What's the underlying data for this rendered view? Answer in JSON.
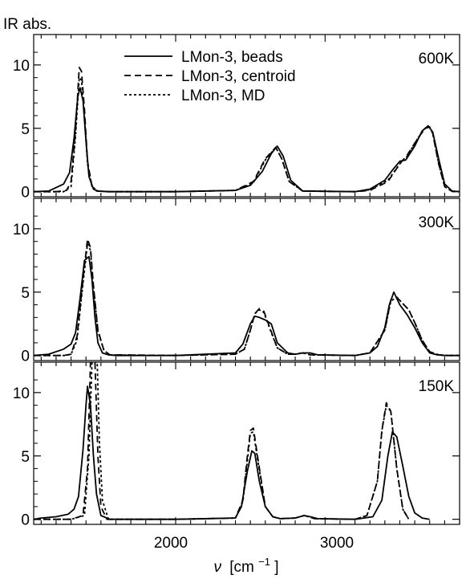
{
  "figure": {
    "ylabel": "IR abs.",
    "xlabel_symbol": "ν",
    "xlabel_unit": "[cm",
    "xlabel_exp": "−1",
    "xlabel_close": "]",
    "x_ticks": [
      "2000",
      "3000"
    ]
  },
  "legend": [
    {
      "label": "LMon-3, beads",
      "style": "solid"
    },
    {
      "label": "LMon-3, centroid",
      "style": "dashed"
    },
    {
      "label": "LMon-3, MD",
      "style": "dotted"
    }
  ],
  "chart_data": [
    {
      "type": "line",
      "annotation": "600K",
      "xlim": [
        1050,
        3900
      ],
      "ylim": [
        -0.4,
        12.4
      ],
      "y_ticks": [
        0,
        5,
        10
      ],
      "x_ticks": [
        2000,
        3000
      ],
      "grid": false,
      "legend_position": "top-center",
      "series": [
        {
          "name": "LMon-3, beads",
          "style": "solid",
          "x": [
            1050,
            1150,
            1250,
            1290,
            1320,
            1345,
            1360,
            1380,
            1400,
            1420,
            1450,
            1480,
            1550,
            2000,
            2400,
            2500,
            2580,
            2640,
            2680,
            2720,
            2770,
            2850,
            3200,
            3300,
            3400,
            3450,
            3500,
            3540,
            3600,
            3650,
            3690,
            3720,
            3760,
            3800,
            3850,
            3900
          ],
          "y": [
            0,
            0.05,
            0.6,
            1.5,
            4.2,
            7.5,
            8.2,
            7.2,
            4,
            1.2,
            0.2,
            0.05,
            0,
            0,
            0.1,
            0.5,
            1.6,
            3,
            3.6,
            2.8,
            0.9,
            0.05,
            0,
            0.2,
            0.9,
            1.7,
            2.4,
            2.5,
            3.6,
            4.8,
            5.2,
            4.7,
            2.6,
            0.6,
            0.05,
            0
          ]
        },
        {
          "name": "LMon-3, centroid",
          "style": "dashed",
          "x": [
            1050,
            1200,
            1270,
            1300,
            1330,
            1355,
            1370,
            1390,
            1410,
            1440,
            1470,
            1550,
            2000,
            2400,
            2520,
            2600,
            2670,
            2710,
            2760,
            2850,
            3200,
            3300,
            3420,
            3500,
            3550,
            3620,
            3670,
            3700,
            3720,
            3760,
            3800,
            3850,
            3900
          ],
          "y": [
            0,
            0,
            0.1,
            0.8,
            4.8,
            9.8,
            9.5,
            6.5,
            2.4,
            0.4,
            0.05,
            0,
            0,
            0.1,
            0.8,
            2.6,
            3.5,
            2.6,
            0.8,
            0.05,
            0,
            0.1,
            0.8,
            2.2,
            2.9,
            4.2,
            5,
            5.1,
            4.6,
            2.2,
            0.4,
            0.02,
            0
          ]
        },
        {
          "name": "LMon-3, MD",
          "style": "dotted",
          "x": [
            1050,
            1250,
            1300,
            1330,
            1355,
            1370,
            1390,
            1410,
            1440,
            1480,
            1550,
            2000,
            2400,
            2520,
            2600,
            2670,
            2710,
            2760,
            2850,
            3200,
            3300,
            3420,
            3500,
            3550,
            3620,
            3670,
            3700,
            3720,
            3760,
            3800,
            3850,
            3900
          ],
          "y": [
            0,
            0,
            0.4,
            4.4,
            9,
            8.8,
            6,
            2.2,
            0.4,
            0.05,
            0,
            0,
            0.1,
            0.7,
            2.5,
            3.5,
            2.6,
            0.8,
            0.05,
            0,
            0.15,
            0.9,
            2.2,
            2.8,
            4.2,
            5,
            5.1,
            4.6,
            2.2,
            0.4,
            0.02,
            0
          ]
        }
      ]
    },
    {
      "type": "line",
      "annotation": "300K",
      "xlim": [
        1050,
        3900
      ],
      "ylim": [
        -0.4,
        12.4
      ],
      "y_ticks": [
        0,
        5,
        10
      ],
      "x_ticks": [
        2000,
        3000
      ],
      "grid": false,
      "series": [
        {
          "name": "LMon-3, beads",
          "style": "solid",
          "x": [
            1050,
            1150,
            1250,
            1300,
            1330,
            1360,
            1390,
            1420,
            1440,
            1460,
            1480,
            1510,
            1550,
            1600,
            2000,
            2400,
            2450,
            2500,
            2530,
            2560,
            2600,
            2640,
            2680,
            2750,
            2800,
            2850,
            2900,
            2950,
            3200,
            3300,
            3350,
            3400,
            3430,
            3460,
            3500,
            3550,
            3600,
            3650,
            3700,
            3750,
            3800,
            3900
          ],
          "y": [
            0,
            0.1,
            0.5,
            0.9,
            1.8,
            4.5,
            7.5,
            7.8,
            6,
            3,
            1,
            0.2,
            0.05,
            0,
            0,
            0.2,
            0.9,
            2.5,
            3.1,
            3,
            2.8,
            2.5,
            1,
            0.2,
            0.1,
            0.2,
            0.2,
            0.05,
            0,
            0.2,
            0.7,
            2.2,
            4,
            5,
            4,
            3.2,
            2.2,
            1,
            0.2,
            0.05,
            0,
            0
          ]
        },
        {
          "name": "LMon-3, centroid",
          "style": "dashed",
          "x": [
            1050,
            1250,
            1300,
            1340,
            1380,
            1410,
            1430,
            1450,
            1480,
            1520,
            1560,
            2000,
            2400,
            2460,
            2500,
            2530,
            2560,
            2590,
            2630,
            2680,
            2750,
            2800,
            2850,
            2900,
            3200,
            3300,
            3400,
            3440,
            3480,
            3520,
            3560,
            3600,
            3650,
            3700,
            3760,
            3820,
            3900
          ],
          "y": [
            0,
            0,
            0.1,
            1.5,
            6,
            9.2,
            8.5,
            5.5,
            2,
            0.4,
            0.05,
            0,
            0.1,
            0.5,
            2,
            3.3,
            3.7,
            3.5,
            2.2,
            0.6,
            0.1,
            0.1,
            0.2,
            0.05,
            0,
            0.2,
            2,
            4.4,
            4.6,
            4.1,
            3.6,
            2.6,
            1.2,
            0.3,
            0.05,
            0,
            0
          ]
        },
        {
          "name": "LMon-3, MD",
          "style": "dotted",
          "x": [
            1050,
            1260,
            1300,
            1340,
            1380,
            1410,
            1430,
            1450,
            1480,
            1520,
            1560,
            2000,
            2400,
            2460,
            2500,
            2530,
            2560,
            2590,
            2630,
            2680,
            2750,
            2800,
            2850,
            2900,
            3200,
            3300,
            3400,
            3440,
            3480,
            3520,
            3560,
            3600,
            3650,
            3700,
            3760,
            3820,
            3900
          ],
          "y": [
            0,
            0,
            0.1,
            1.2,
            5.7,
            8.8,
            8.3,
            5.4,
            1.9,
            0.4,
            0.05,
            0,
            0.1,
            0.5,
            2,
            3.3,
            3.6,
            3.4,
            2.1,
            0.6,
            0.1,
            0.1,
            0.2,
            0.05,
            0,
            0.2,
            2,
            4.3,
            4.6,
            4.1,
            3.6,
            2.6,
            1.2,
            0.3,
            0.05,
            0,
            0
          ]
        }
      ]
    },
    {
      "type": "line",
      "annotation": "150K",
      "xlim": [
        1050,
        3900
      ],
      "ylim": [
        -0.4,
        12.4
      ],
      "y_ticks": [
        0,
        5,
        10
      ],
      "x_ticks": [
        2000,
        3000
      ],
      "grid": false,
      "series": [
        {
          "name": "LMon-3, beads",
          "style": "solid",
          "x": [
            1050,
            1100,
            1200,
            1280,
            1320,
            1350,
            1380,
            1400,
            1410,
            1430,
            1450,
            1470,
            1500,
            1560,
            2000,
            2400,
            2440,
            2480,
            2510,
            2530,
            2560,
            2600,
            2650,
            2700,
            2800,
            2860,
            2900,
            2950,
            3200,
            3320,
            3380,
            3420,
            3450,
            3480,
            3520,
            3560,
            3600,
            3650,
            3700
          ],
          "y": [
            0,
            0.1,
            0.2,
            0.4,
            0.8,
            1.8,
            5.5,
            9,
            10.5,
            9,
            5,
            2,
            0.3,
            0,
            0,
            0.1,
            1,
            3.8,
            5.4,
            5.2,
            3,
            1,
            0.2,
            0.05,
            0.1,
            0.3,
            0.2,
            0.05,
            0,
            0.2,
            1.5,
            5,
            6.9,
            6.5,
            4.2,
            1.8,
            0.5,
            0.1,
            0
          ]
        },
        {
          "name": "LMon-3, centroid",
          "style": "dashed",
          "x": [
            1050,
            1300,
            1380,
            1410,
            1430,
            1445,
            1460,
            1480,
            1500,
            1540,
            2000,
            2400,
            2450,
            2480,
            2500,
            2520,
            2550,
            2600,
            2650,
            2700,
            2800,
            2860,
            2890,
            2930,
            3200,
            3280,
            3350,
            3380,
            3410,
            3440,
            3480,
            3520,
            3560
          ],
          "y": [
            0,
            0,
            0.3,
            4,
            12.4,
            12.4,
            12.4,
            5,
            1,
            0,
            0,
            0.1,
            1.5,
            5,
            7,
            7.2,
            4.8,
            1,
            0.2,
            0.05,
            0.1,
            0.3,
            0.2,
            0.05,
            0,
            0.3,
            3,
            7,
            9.2,
            8.5,
            4,
            0.8,
            0
          ]
        },
        {
          "name": "LMon-3, MD",
          "style": "dotted",
          "x": [
            1050,
            1300,
            1390,
            1420,
            1440,
            1460,
            1475,
            1490,
            1510,
            1550,
            2000,
            2400,
            2450,
            2480,
            2500,
            2520,
            2550,
            2600,
            2650,
            2700,
            2800,
            2860,
            2890,
            2930,
            3200,
            3280,
            3350,
            3380,
            3410,
            3440,
            3480,
            3520,
            3560
          ],
          "y": [
            0,
            0,
            0.3,
            5,
            12.4,
            12.4,
            12.4,
            6,
            1.5,
            0,
            0,
            0.1,
            1.4,
            4.6,
            6.8,
            6.9,
            4.6,
            1,
            0.2,
            0.05,
            0.1,
            0.3,
            0.2,
            0.05,
            0,
            0.3,
            3,
            7,
            9,
            8.5,
            4,
            0.8,
            0
          ]
        }
      ]
    }
  ]
}
